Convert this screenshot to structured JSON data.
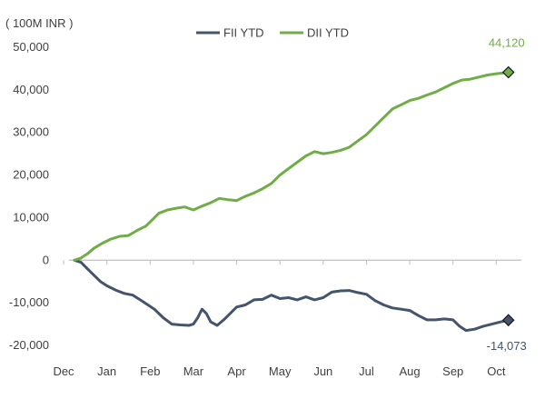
{
  "chart_data": {
    "type": "line",
    "title": "",
    "unit_label": "( 100M INR )",
    "xlabel": "",
    "ylabel": "",
    "ylim": [
      -20000,
      50000
    ],
    "y_ticks": [
      50000,
      40000,
      30000,
      20000,
      10000,
      0,
      -10000,
      -20000
    ],
    "y_tick_labels": [
      "50,000",
      "40,000",
      "30,000",
      "20,000",
      "10,000",
      "0",
      "-10,000",
      "-20,000"
    ],
    "x_range": [
      0,
      11
    ],
    "x_ticks": [
      0,
      1,
      2,
      3,
      4,
      5,
      6,
      7,
      8,
      9,
      10
    ],
    "x_tick_labels": [
      "Dec",
      "Jan",
      "Feb",
      "Mar",
      "Apr",
      "May",
      "Jun",
      "Jul",
      "Aug",
      "Sep",
      "Oct"
    ],
    "legend_position": "top-center",
    "zero_line": true,
    "grid": false,
    "series": [
      {
        "name": "FII YTD",
        "color": "#44546A",
        "end_marker": "diamond",
        "end_label": "-14,073",
        "points": [
          [
            0.25,
            0
          ],
          [
            0.4,
            -500
          ],
          [
            0.55,
            -2000
          ],
          [
            0.7,
            -3500
          ],
          [
            0.85,
            -5000
          ],
          [
            1.0,
            -6000
          ],
          [
            1.2,
            -7000
          ],
          [
            1.4,
            -7800
          ],
          [
            1.6,
            -8200
          ],
          [
            1.8,
            -9500
          ],
          [
            1.95,
            -10500
          ],
          [
            2.1,
            -11500
          ],
          [
            2.3,
            -13500
          ],
          [
            2.5,
            -15000
          ],
          [
            2.7,
            -15200
          ],
          [
            2.9,
            -15300
          ],
          [
            3.0,
            -15000
          ],
          [
            3.1,
            -13500
          ],
          [
            3.2,
            -11500
          ],
          [
            3.3,
            -12500
          ],
          [
            3.4,
            -14500
          ],
          [
            3.55,
            -15300
          ],
          [
            3.7,
            -14000
          ],
          [
            3.85,
            -12500
          ],
          [
            4.0,
            -11000
          ],
          [
            4.2,
            -10500
          ],
          [
            4.4,
            -9300
          ],
          [
            4.6,
            -9200
          ],
          [
            4.8,
            -8200
          ],
          [
            5.0,
            -9000
          ],
          [
            5.2,
            -8800
          ],
          [
            5.4,
            -9300
          ],
          [
            5.6,
            -8600
          ],
          [
            5.8,
            -9300
          ],
          [
            6.0,
            -8800
          ],
          [
            6.2,
            -7500
          ],
          [
            6.4,
            -7200
          ],
          [
            6.6,
            -7100
          ],
          [
            6.8,
            -7600
          ],
          [
            7.0,
            -8000
          ],
          [
            7.2,
            -9500
          ],
          [
            7.4,
            -10500
          ],
          [
            7.6,
            -11200
          ],
          [
            7.8,
            -11500
          ],
          [
            8.0,
            -11800
          ],
          [
            8.2,
            -13000
          ],
          [
            8.4,
            -14000
          ],
          [
            8.6,
            -14000
          ],
          [
            8.8,
            -13800
          ],
          [
            9.0,
            -14000
          ],
          [
            9.15,
            -15500
          ],
          [
            9.3,
            -16500
          ],
          [
            9.5,
            -16200
          ],
          [
            9.7,
            -15500
          ],
          [
            9.9,
            -15000
          ],
          [
            10.1,
            -14500
          ],
          [
            10.28,
            -14073
          ]
        ]
      },
      {
        "name": "DII YTD",
        "color": "#70AD47",
        "end_marker": "diamond",
        "end_label": "44,120",
        "points": [
          [
            0.25,
            0
          ],
          [
            0.4,
            500
          ],
          [
            0.55,
            1500
          ],
          [
            0.7,
            2800
          ],
          [
            0.9,
            4000
          ],
          [
            1.1,
            5000
          ],
          [
            1.3,
            5600
          ],
          [
            1.5,
            5800
          ],
          [
            1.7,
            7000
          ],
          [
            1.9,
            8000
          ],
          [
            2.05,
            9500
          ],
          [
            2.2,
            11000
          ],
          [
            2.4,
            11800
          ],
          [
            2.6,
            12200
          ],
          [
            2.8,
            12500
          ],
          [
            3.0,
            11800
          ],
          [
            3.2,
            12700
          ],
          [
            3.4,
            13500
          ],
          [
            3.6,
            14500
          ],
          [
            3.8,
            14200
          ],
          [
            4.0,
            14000
          ],
          [
            4.2,
            15000
          ],
          [
            4.4,
            15800
          ],
          [
            4.6,
            16800
          ],
          [
            4.8,
            18000
          ],
          [
            5.0,
            20000
          ],
          [
            5.2,
            21500
          ],
          [
            5.4,
            23000
          ],
          [
            5.6,
            24500
          ],
          [
            5.8,
            25500
          ],
          [
            6.0,
            25000
          ],
          [
            6.2,
            25300
          ],
          [
            6.4,
            25800
          ],
          [
            6.6,
            26500
          ],
          [
            6.8,
            28000
          ],
          [
            7.0,
            29500
          ],
          [
            7.2,
            31500
          ],
          [
            7.4,
            33500
          ],
          [
            7.6,
            35500
          ],
          [
            7.8,
            36500
          ],
          [
            8.0,
            37500
          ],
          [
            8.2,
            38000
          ],
          [
            8.4,
            38800
          ],
          [
            8.6,
            39500
          ],
          [
            8.8,
            40500
          ],
          [
            9.0,
            41500
          ],
          [
            9.2,
            42300
          ],
          [
            9.4,
            42500
          ],
          [
            9.6,
            43000
          ],
          [
            9.8,
            43500
          ],
          [
            10.0,
            43800
          ],
          [
            10.28,
            44120
          ]
        ]
      }
    ]
  }
}
